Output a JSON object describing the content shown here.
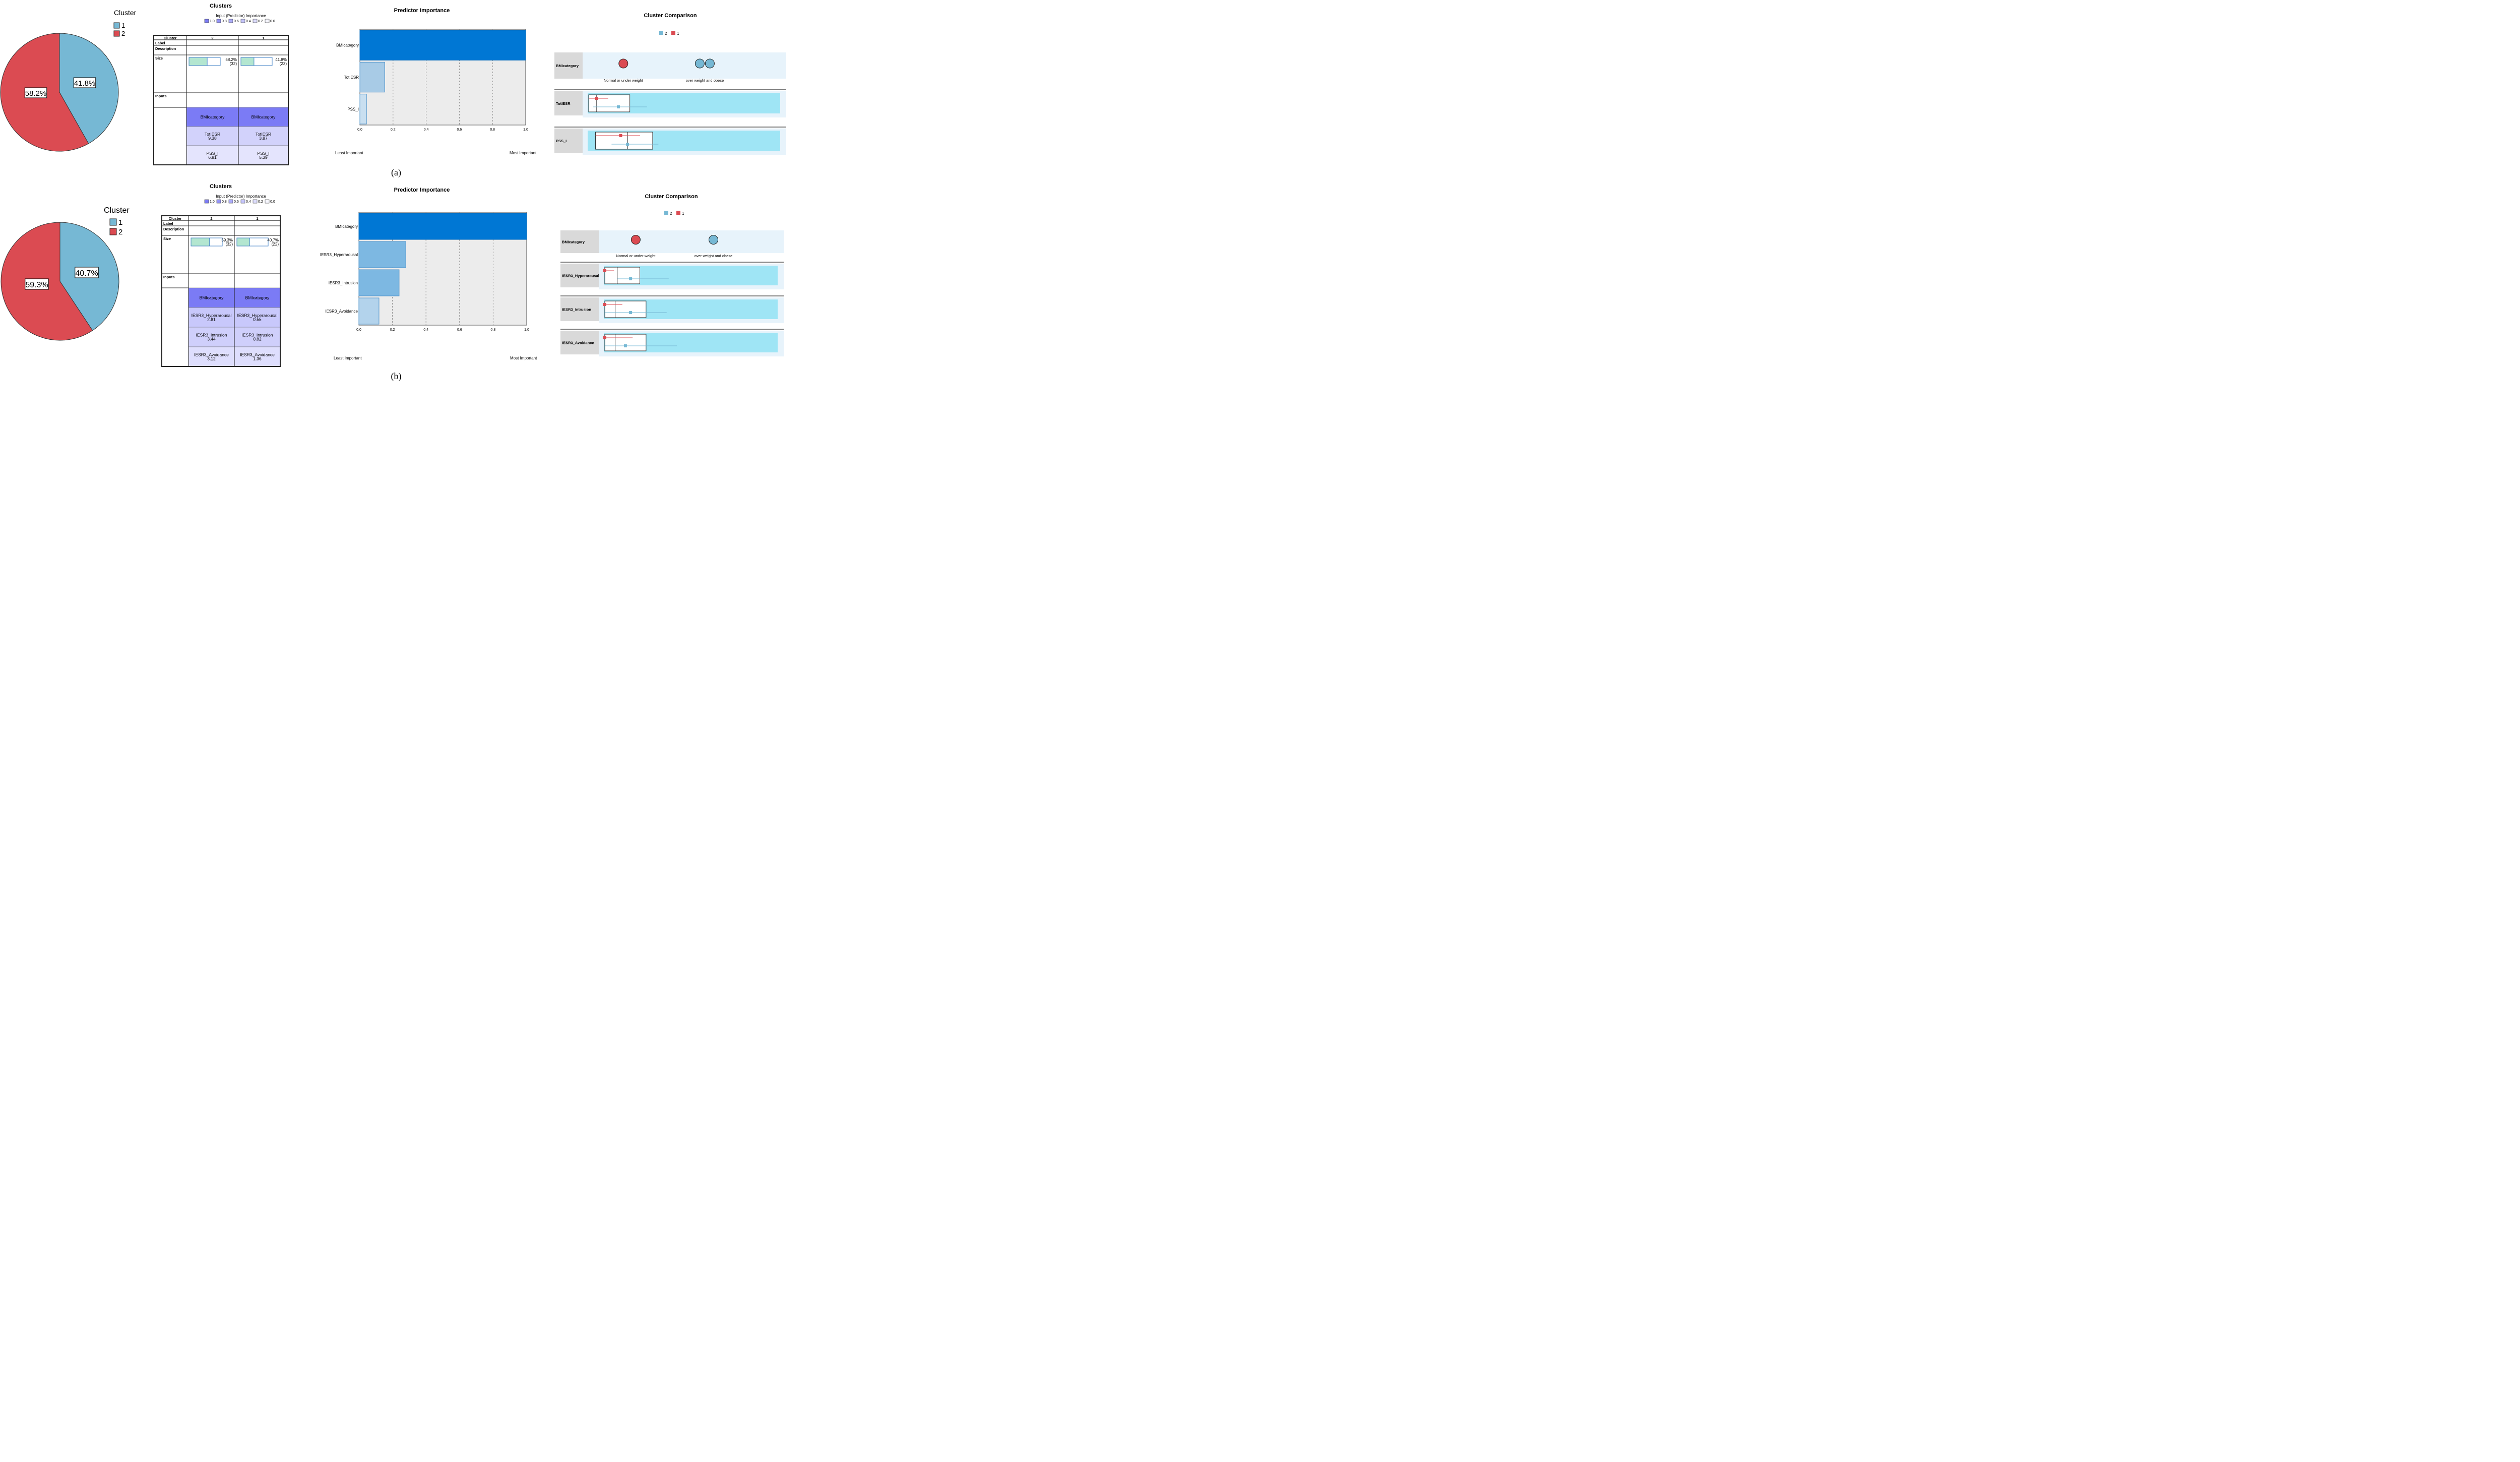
{
  "panels": [
    {
      "caption": "(a)",
      "pie": {
        "legend_title": "Cluster",
        "legend_items": [
          {
            "label": "1",
            "color": "#76b8d4"
          },
          {
            "label": "2",
            "color": "#db4b52"
          }
        ],
        "slices": [
          {
            "cluster": "1",
            "percent": 41.8,
            "label": "41.8%",
            "color": "#76b8d4"
          },
          {
            "cluster": "2",
            "percent": 58.2,
            "label": "58.2%",
            "color": "#db4b52"
          }
        ]
      },
      "clusters": {
        "title": "Clusters",
        "importance_title": "Input (Predictor) Importance",
        "importance_legend": [
          {
            "label": "1.0",
            "color": "#7b7bf5"
          },
          {
            "label": "0.8",
            "color": "#9494f7"
          },
          {
            "label": "0.6",
            "color": "#adadf9"
          },
          {
            "label": "0.4",
            "color": "#c6c6fb"
          },
          {
            "label": "0.2",
            "color": "#dedefd"
          },
          {
            "label": "0.0",
            "color": "#f7f7ff"
          }
        ],
        "header": {
          "cluster": "Cluster",
          "columns": [
            "2",
            "1"
          ]
        },
        "row_labels": {
          "label": "Label",
          "description": "Description",
          "size": "Size",
          "inputs": "Inputs"
        },
        "sizes": [
          {
            "fraction": 0.582,
            "percent": "58.2%",
            "count": "(32)"
          },
          {
            "fraction": 0.418,
            "percent": "41.8%",
            "count": "(23)"
          }
        ],
        "inputs": [
          {
            "cells": [
              {
                "name": "BMIcategory",
                "value": ""
              },
              {
                "name": "BMIcategory",
                "value": ""
              }
            ],
            "color": "#7b7bf5"
          },
          {
            "cells": [
              {
                "name": "TotIESR",
                "value": "9.38"
              },
              {
                "name": "TotIESR",
                "value": "3.87"
              }
            ],
            "color": "#d2d2fb"
          },
          {
            "cells": [
              {
                "name": "PSS_I",
                "value": "6.81"
              },
              {
                "name": "PSS_I",
                "value": "5.39"
              }
            ],
            "color": "#e4e4fd"
          }
        ]
      },
      "chart_data": {
        "type": "bar",
        "orientation": "horizontal",
        "title": "Predictor Importance",
        "categories": [
          "BMIcategory",
          "TotIESR",
          "PSS_I"
        ],
        "values": [
          1.0,
          0.15,
          0.04
        ],
        "colors": [
          "#0077d4",
          "#a8cbe6",
          "#c9dff0"
        ],
        "xlim": [
          0.0,
          1.0
        ],
        "xticks": [
          "0.0",
          "0.2",
          "0.4",
          "0.6",
          "0.8",
          "1.0"
        ],
        "xlabel_left": "Least Important",
        "xlabel_right": "Most Important",
        "grid": true
      },
      "comparison": {
        "title": "Cluster Comparison",
        "legend": [
          {
            "label": "2",
            "color": "#76b8d4"
          },
          {
            "label": "1",
            "color": "#db4b52"
          }
        ],
        "categorical": {
          "name": "BMIcategory",
          "categories": [
            "Normal or under weight",
            "over weight and obese"
          ],
          "markers": [
            {
              "cluster": "1",
              "category_index": 0,
              "color": "#db4b52"
            },
            {
              "cluster": "2",
              "category_index": 1,
              "color": "#76b8d4"
            },
            {
              "cluster": "2",
              "category_index": 1,
              "color": "#76b8d4"
            }
          ]
        },
        "continuous": [
          {
            "name": "TotIESR",
            "box": {
              "q1": 0.0,
              "median": 0.07,
              "q3": 0.36
            },
            "whisker_max": 1.0,
            "clusters": [
              {
                "cluster": "1",
                "mean": 0.07,
                "low": 0.0,
                "high": 0.17,
                "color": "#db4b52"
              },
              {
                "cluster": "2",
                "mean": 0.26,
                "low": 0.04,
                "high": 0.51,
                "color": "#76b8d4"
              }
            ]
          },
          {
            "name": "PSS_I",
            "box": {
              "q1": 0.06,
              "median": 0.34,
              "q3": 0.56
            },
            "whisker_max": 1.0,
            "clusters": [
              {
                "cluster": "1",
                "mean": 0.28,
                "low": 0.06,
                "high": 0.45,
                "color": "#db4b52"
              },
              {
                "cluster": "2",
                "mean": 0.34,
                "low": 0.2,
                "high": 0.61,
                "color": "#76b8d4"
              }
            ]
          }
        ]
      }
    },
    {
      "caption": "(b)",
      "pie": {
        "legend_title": "Cluster",
        "legend_items": [
          {
            "label": "1",
            "color": "#76b8d4"
          },
          {
            "label": "2",
            "color": "#db4b52"
          }
        ],
        "slices": [
          {
            "cluster": "1",
            "percent": 40.7,
            "label": "40.7%",
            "color": "#76b8d4"
          },
          {
            "cluster": "2",
            "percent": 59.3,
            "label": "59.3%",
            "color": "#db4b52"
          }
        ]
      },
      "clusters": {
        "title": "Clusters",
        "importance_title": "Input (Predictor) Importance",
        "importance_legend": [
          {
            "label": "1.0",
            "color": "#7b7bf5"
          },
          {
            "label": "0.8",
            "color": "#9494f7"
          },
          {
            "label": "0.6",
            "color": "#adadf9"
          },
          {
            "label": "0.4",
            "color": "#c6c6fb"
          },
          {
            "label": "0.2",
            "color": "#dedefd"
          },
          {
            "label": "0.0",
            "color": "#f7f7ff"
          }
        ],
        "header": {
          "cluster": "Cluster",
          "columns": [
            "2",
            "1"
          ]
        },
        "row_labels": {
          "label": "Label",
          "description": "Description",
          "size": "Size",
          "inputs": "Inputs"
        },
        "sizes": [
          {
            "fraction": 0.593,
            "percent": "59.3%",
            "count": "(32)"
          },
          {
            "fraction": 0.407,
            "percent": "40.7%",
            "count": "(22)"
          }
        ],
        "inputs": [
          {
            "cells": [
              {
                "name": "BMIcategory",
                "value": ""
              },
              {
                "name": "BMIcategory",
                "value": ""
              }
            ],
            "color": "#7b7bf5"
          },
          {
            "cells": [
              {
                "name": "IESR3_Hyperarousal",
                "value": "2.81"
              },
              {
                "name": "IESR3_Hyperarousal",
                "value": "0.55"
              }
            ],
            "color": "#c8c8fb"
          },
          {
            "cells": [
              {
                "name": "IESR3_Intrusion",
                "value": "3.44"
              },
              {
                "name": "IESR3_Intrusion",
                "value": "0.82"
              }
            ],
            "color": "#cfcffb"
          },
          {
            "cells": [
              {
                "name": "IESR3_Avoidance",
                "value": "3.12"
              },
              {
                "name": "IESR3_Avoidance",
                "value": "1.36"
              }
            ],
            "color": "#dedefd"
          }
        ]
      },
      "chart_data": {
        "type": "bar",
        "orientation": "horizontal",
        "title": "Predictor Importance",
        "categories": [
          "BMIcategory",
          "IESR3_Hyperarousal",
          "IESR3_Intrusion",
          "IESR3_Avoidance"
        ],
        "values": [
          1.0,
          0.28,
          0.24,
          0.12
        ],
        "colors": [
          "#0077d4",
          "#7db8e2",
          "#7db8e2",
          "#b3d3ec"
        ],
        "xlim": [
          0.0,
          1.0
        ],
        "xticks": [
          "0.0",
          "0.2",
          "0.4",
          "0.6",
          "0.8",
          "1.0"
        ],
        "xlabel_left": "Least Important",
        "xlabel_right": "Most Important",
        "grid": true
      },
      "comparison": {
        "title": "Cluster Comparison",
        "legend": [
          {
            "label": "2",
            "color": "#76b8d4"
          },
          {
            "label": "1",
            "color": "#db4b52"
          }
        ],
        "categorical": {
          "name": "BMIcategory",
          "categories": [
            "Normal or under weight",
            "over weight and obese"
          ],
          "markers": [
            {
              "cluster": "1",
              "category_index": 0,
              "color": "#db4b52"
            },
            {
              "cluster": "2",
              "category_index": 1,
              "color": "#76b8d4"
            }
          ]
        },
        "continuous": [
          {
            "name": "IESR3_Hyperarousal",
            "box": {
              "q1": 0.0,
              "median": 0.12,
              "q3": 0.34
            },
            "whisker_max": 1.0,
            "clusters": [
              {
                "cluster": "1",
                "mean": 0.0,
                "low": 0.0,
                "high": 0.09,
                "color": "#db4b52"
              },
              {
                "cluster": "2",
                "mean": 0.25,
                "low": 0.12,
                "high": 0.62,
                "color": "#76b8d4"
              }
            ]
          },
          {
            "name": "IESR3_Intrusion",
            "box": {
              "q1": 0.0,
              "median": 0.1,
              "q3": 0.4
            },
            "whisker_max": 1.0,
            "clusters": [
              {
                "cluster": "1",
                "mean": 0.0,
                "low": 0.0,
                "high": 0.17,
                "color": "#db4b52"
              },
              {
                "cluster": "2",
                "mean": 0.25,
                "low": 0.0,
                "high": 0.6,
                "color": "#76b8d4"
              }
            ]
          },
          {
            "name": "IESR3_Avoidance",
            "box": {
              "q1": 0.0,
              "median": 0.1,
              "q3": 0.4
            },
            "whisker_max": 1.0,
            "clusters": [
              {
                "cluster": "1",
                "mean": 0.0,
                "low": 0.0,
                "high": 0.27,
                "color": "#db4b52"
              },
              {
                "cluster": "2",
                "mean": 0.2,
                "low": 0.0,
                "high": 0.7,
                "color": "#76b8d4"
              }
            ]
          }
        ]
      }
    }
  ]
}
